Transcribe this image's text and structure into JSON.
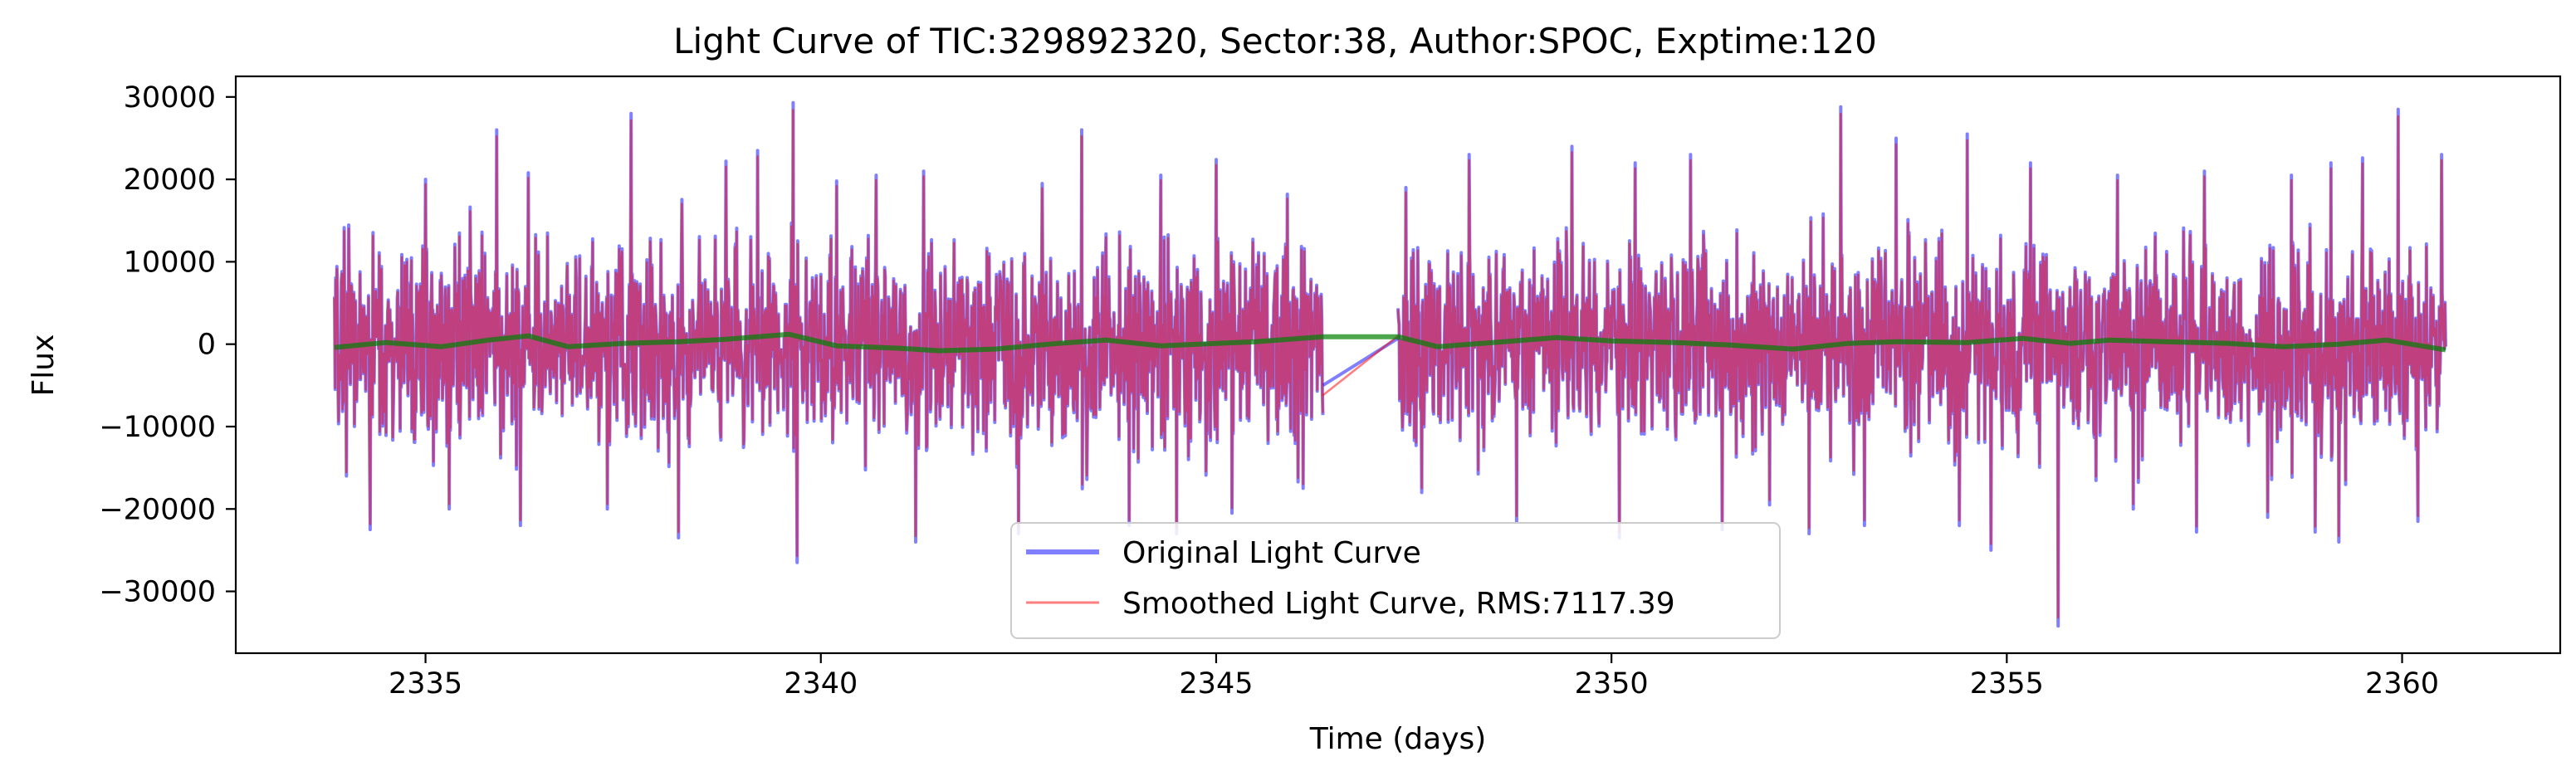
{
  "chart_data": {
    "type": "line",
    "title": "Light Curve of TIC:329892320, Sector:38, Author:SPOC, Exptime:120",
    "xlabel": "Time (days)",
    "ylabel": "Flux",
    "xlim": [
      2332.6,
      2362.0
    ],
    "ylim": [
      -37500,
      32500
    ],
    "xticks": [
      2335,
      2340,
      2345,
      2350,
      2355,
      2360
    ],
    "xtick_labels": [
      "2335",
      "2340",
      "2345",
      "2350",
      "2355",
      "2360"
    ],
    "yticks": [
      -30000,
      -20000,
      -10000,
      0,
      10000,
      20000,
      30000
    ],
    "ytick_labels": [
      "−30000",
      "−20000",
      "−10000",
      "0",
      "10000",
      "20000",
      "30000"
    ],
    "grid": false,
    "legend_position": "bottom-center",
    "segments": [
      [
        2333.85,
        2346.35
      ],
      [
        2347.3,
        2360.55
      ]
    ],
    "noise_band": {
      "typical_low": -13000,
      "typical_high": 13000,
      "spike_max": 29300,
      "spike_min": -34200
    },
    "series": [
      {
        "name": "Original Light Curve",
        "color": "#0000ff",
        "opacity": 0.5,
        "peaks": [
          [
            2334.0,
            18500
          ],
          [
            2335.0,
            20000
          ],
          [
            2335.9,
            26000
          ],
          [
            2336.3,
            20800
          ],
          [
            2337.6,
            28000
          ],
          [
            2338.2,
            23000
          ],
          [
            2338.8,
            22200
          ],
          [
            2339.2,
            23500
          ],
          [
            2339.65,
            29300
          ],
          [
            2340.2,
            19800
          ],
          [
            2340.7,
            20500
          ],
          [
            2341.3,
            21000
          ],
          [
            2342.8,
            19500
          ],
          [
            2343.3,
            26000
          ],
          [
            2344.3,
            20500
          ],
          [
            2345.0,
            22400
          ],
          [
            2345.9,
            18200
          ],
          [
            2347.4,
            19000
          ],
          [
            2348.2,
            23000
          ],
          [
            2349.5,
            24000
          ],
          [
            2350.3,
            22000
          ],
          [
            2351.0,
            23000
          ],
          [
            2352.0,
            24300
          ],
          [
            2352.9,
            28800
          ],
          [
            2353.6,
            25000
          ],
          [
            2354.5,
            25500
          ],
          [
            2355.3,
            22000
          ],
          [
            2356.4,
            20500
          ],
          [
            2357.5,
            21000
          ],
          [
            2358.6,
            20500
          ],
          [
            2359.1,
            22000
          ],
          [
            2359.5,
            22600
          ],
          [
            2359.95,
            28500
          ],
          [
            2360.5,
            23000
          ]
        ],
        "troughs": [
          [
            2334.0,
            -16000
          ],
          [
            2334.3,
            -22500
          ],
          [
            2335.3,
            -20000
          ],
          [
            2336.2,
            -22000
          ],
          [
            2337.3,
            -20000
          ],
          [
            2338.2,
            -23500
          ],
          [
            2339.7,
            -26500
          ],
          [
            2341.2,
            -24000
          ],
          [
            2342.5,
            -23000
          ],
          [
            2343.9,
            -22000
          ],
          [
            2344.5,
            -23000
          ],
          [
            2345.2,
            -20500
          ],
          [
            2346.1,
            -17500
          ],
          [
            2347.6,
            -18000
          ],
          [
            2348.8,
            -21500
          ],
          [
            2350.1,
            -23500
          ],
          [
            2351.4,
            -22500
          ],
          [
            2352.0,
            -19500
          ],
          [
            2352.5,
            -23000
          ],
          [
            2353.2,
            -22000
          ],
          [
            2354.4,
            -22000
          ],
          [
            2354.8,
            -25000
          ],
          [
            2355.65,
            -34200
          ],
          [
            2356.6,
            -20000
          ],
          [
            2357.4,
            -22800
          ],
          [
            2358.3,
            -21000
          ],
          [
            2358.9,
            -22800
          ],
          [
            2359.2,
            -24000
          ],
          [
            2360.2,
            -21500
          ]
        ]
      },
      {
        "name": "Smoothed Light Curve, RMS:7117.39",
        "color": "#ff0000",
        "opacity": 0.5
      },
      {
        "name": "",
        "color": "#008000",
        "opacity": 0.7,
        "trend": [
          [
            2333.85,
            -400
          ],
          [
            2334.5,
            200
          ],
          [
            2335.2,
            -300
          ],
          [
            2335.8,
            500
          ],
          [
            2336.3,
            1000
          ],
          [
            2336.8,
            -300
          ],
          [
            2337.5,
            100
          ],
          [
            2338.2,
            300
          ],
          [
            2338.8,
            600
          ],
          [
            2339.6,
            1200
          ],
          [
            2340.2,
            -200
          ],
          [
            2341.0,
            -500
          ],
          [
            2341.5,
            -800
          ],
          [
            2342.2,
            -600
          ],
          [
            2343.0,
            100
          ],
          [
            2343.6,
            500
          ],
          [
            2344.3,
            -200
          ],
          [
            2345.0,
            100
          ],
          [
            2345.5,
            300
          ],
          [
            2346.35,
            900
          ],
          [
            2347.3,
            900
          ],
          [
            2347.8,
            -300
          ],
          [
            2348.5,
            200
          ],
          [
            2349.3,
            800
          ],
          [
            2350.0,
            400
          ],
          [
            2350.8,
            200
          ],
          [
            2351.5,
            -100
          ],
          [
            2352.3,
            -600
          ],
          [
            2353.0,
            100
          ],
          [
            2353.6,
            300
          ],
          [
            2354.5,
            200
          ],
          [
            2355.2,
            700
          ],
          [
            2355.8,
            100
          ],
          [
            2356.3,
            500
          ],
          [
            2357.0,
            300
          ],
          [
            2357.8,
            100
          ],
          [
            2358.5,
            -300
          ],
          [
            2359.2,
            0
          ],
          [
            2359.8,
            500
          ],
          [
            2360.55,
            -700
          ]
        ]
      }
    ]
  }
}
